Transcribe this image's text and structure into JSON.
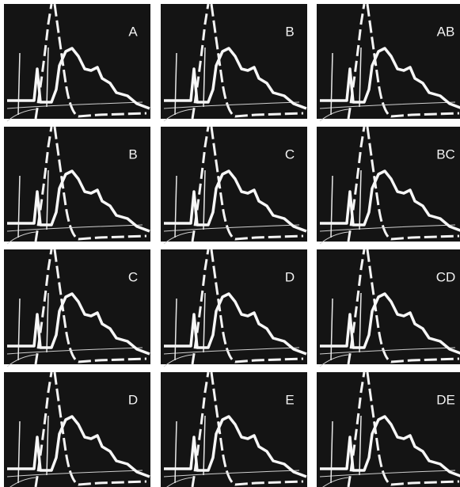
{
  "panels": [
    {
      "label": "A"
    },
    {
      "label": "B"
    },
    {
      "label": "AB"
    },
    {
      "label": "B"
    },
    {
      "label": "C"
    },
    {
      "label": "BC"
    },
    {
      "label": "C"
    },
    {
      "label": "D"
    },
    {
      "label": "CD"
    },
    {
      "label": "D"
    },
    {
      "label": "E"
    },
    {
      "label": "DE"
    }
  ]
}
